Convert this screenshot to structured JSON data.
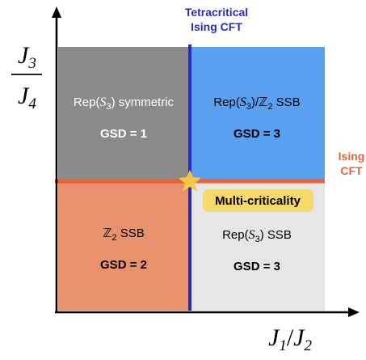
{
  "axes": {
    "x_label": {
      "base": "J",
      "sub1": "1",
      "slash": "/",
      "base2": "J",
      "sub2": "2"
    },
    "y_label": {
      "num": "J",
      "num_sub": "3",
      "den": "J",
      "den_sub": "4"
    }
  },
  "regions": {
    "top_left": {
      "label_pre": "Rep(",
      "label_sym": "S",
      "label_sub": "3",
      "label_post": ") symmetric",
      "gsd": "GSD = 1",
      "color": "#8a8a8a"
    },
    "top_right": {
      "label_pre": "Rep(",
      "label_sym": "S",
      "label_sub": "3",
      "label_post": ")/",
      "label_z": "ℤ",
      "label_z_sub": "2",
      "label_tail": " SSB",
      "gsd": "GSD = 3",
      "color": "#5aa0f0"
    },
    "bottom_left": {
      "label_z": "ℤ",
      "label_z_sub": "2",
      "label_tail": " SSB",
      "gsd": "GSD = 2",
      "color": "#e8916c"
    },
    "bottom_right": {
      "label_pre": "Rep(",
      "label_sym": "S",
      "label_sub": "3",
      "label_post": ") SSB",
      "gsd": "GSD = 3",
      "color": "#e6e6e6"
    }
  },
  "lines": {
    "vertical": {
      "label_line1": "Tetracritical",
      "label_line2": "Ising CFT",
      "color": "#2a2ac0"
    },
    "horizontal": {
      "label_line1": "Ising",
      "label_line2": "CFT",
      "color": "#e8623a"
    }
  },
  "multicriticality": {
    "label": "Multi-criticality",
    "badge_color": "#f7d86a",
    "star_color": "#f5c842"
  }
}
